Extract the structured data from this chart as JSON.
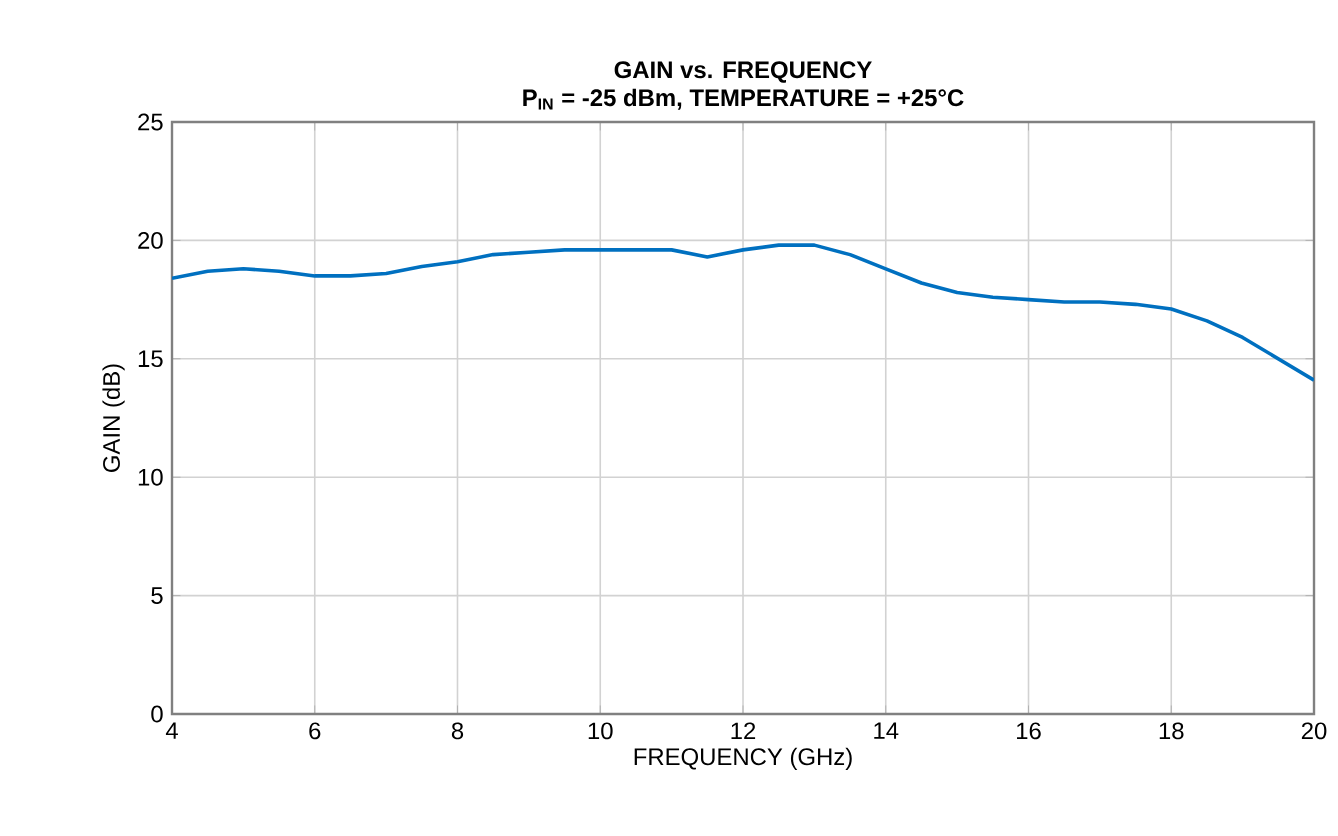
{
  "chart_data": {
    "type": "line",
    "title": "GAIN vs. FREQUENCY",
    "subtitle": "P$_{IN}$ = -25 dBm, TEMPERATURE = +25°C",
    "xlabel": "FREQUENCY (GHz)",
    "ylabel": "GAIN (dB)",
    "x": [
      4,
      4.5,
      5,
      5.5,
      6,
      6.5,
      7,
      7.5,
      8,
      8.5,
      9,
      9.5,
      10,
      10.5,
      11,
      11.5,
      12,
      12.5,
      13,
      13.5,
      14,
      14.5,
      15,
      15.5,
      16,
      16.5,
      17,
      17.5,
      18,
      18.5,
      19,
      19.5,
      20
    ],
    "series": [
      {
        "color": "#0070c0",
        "values": [
          18.4,
          18.7,
          18.8,
          18.7,
          18.5,
          18.5,
          18.6,
          18.9,
          19.1,
          19.4,
          19.5,
          19.6,
          19.6,
          19.6,
          19.6,
          19.3,
          19.6,
          19.8,
          19.8,
          19.4,
          18.8,
          18.2,
          17.8,
          17.6,
          17.5,
          17.4,
          17.4,
          17.3,
          17.1,
          16.6,
          15.9,
          15.0,
          14.1
        ]
      }
    ],
    "xlim": [
      4,
      20
    ],
    "ylim": [
      0,
      25
    ],
    "xticks": [
      4,
      6,
      8,
      10,
      12,
      14,
      16,
      18,
      20
    ],
    "yticks": [
      0,
      5,
      10,
      15,
      20,
      25
    ],
    "grid": true,
    "marker": "none",
    "line_style": "solid"
  }
}
